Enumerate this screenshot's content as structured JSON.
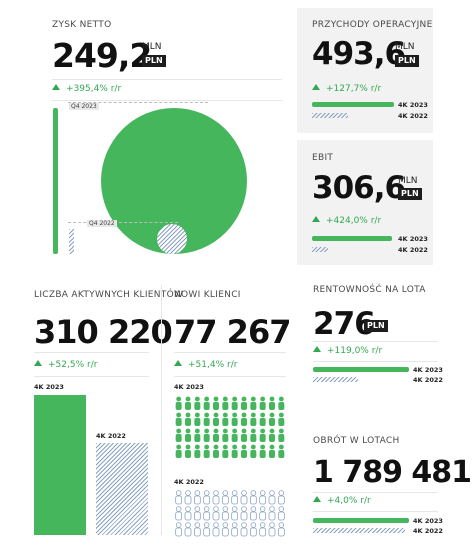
{
  "colors": {
    "green": "#46b65d",
    "hatch": "#8aa2c2",
    "card": "#f2f2f3",
    "dark": "#1d1d1d"
  },
  "net_profit": {
    "title": "ZYSK NETTO",
    "value": "249,2",
    "unit": "MLN",
    "currency": "PLN",
    "change": "+395,4% r/r",
    "q_current": "Q4 2023",
    "q_prev": "Q4 2022"
  },
  "op_revenue": {
    "title": "PRZYCHODY OPERACYJNE",
    "value": "493,6",
    "unit": "MLN",
    "currency": "PLN",
    "change": "+127,7% r/r",
    "cur": "4K 2023",
    "prev": "4K 2022"
  },
  "ebit": {
    "title": "EBIT",
    "value": "306,6",
    "unit": "MLN",
    "currency": "PLN",
    "change": "+424,0% r/r",
    "cur": "4K 2023",
    "prev": "4K 2022"
  },
  "active_clients": {
    "title": "LICZBA AKTYWNYCH KLIENTÓW",
    "value": "310 220",
    "change": "+52,5% r/r",
    "cur": "4K 2023",
    "prev": "4K 2022"
  },
  "new_clients": {
    "title": "NOWI KLIENCI",
    "value": "77 267",
    "change": "+51,4% r/r",
    "cur": "4K 2023",
    "prev": "4K 2022"
  },
  "profitability": {
    "title": "RENTOWNOŚĆ NA LOTA",
    "value": "276",
    "currency": "PLN",
    "change": "+119,0% r/r",
    "cur": "4K 2023",
    "prev": "4K 2022"
  },
  "lot_turnover": {
    "title": "OBRÓT W LOTACH",
    "value": "1 789 481",
    "change": "+4,0% r/r",
    "cur": "4K 2023",
    "prev": "4K 2022"
  }
}
